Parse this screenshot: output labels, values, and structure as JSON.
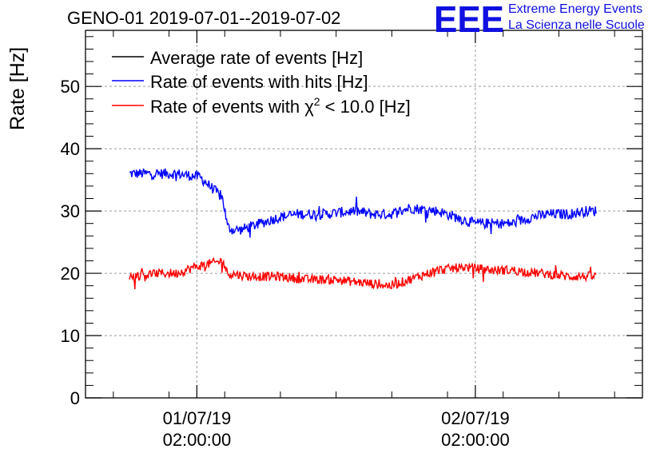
{
  "chart_data": {
    "type": "line",
    "title": "GENO-01 2019-07-01--2019-07-02",
    "xlabel": "",
    "ylabel": "Rate [Hz]",
    "ylim": [
      0,
      59
    ],
    "y_ticks": [
      0,
      10,
      20,
      30,
      40,
      50
    ],
    "x_ticks": [
      {
        "line1": "01/07/19",
        "line2": "02:00:00",
        "at": 0.2
      },
      {
        "line1": "02/07/19",
        "line2": "02:00:00",
        "at": 0.7
      }
    ],
    "grid": true,
    "legend_placement": "top-left",
    "series": [
      {
        "name": "Average rate of events [Hz]",
        "color": "#000000",
        "values": []
      },
      {
        "name": "Rate of events with hits [Hz]",
        "color": "#0000ff",
        "x": [
          0.0,
          0.08,
          0.1,
          0.15,
          0.18,
          0.2,
          0.21,
          0.22,
          0.24,
          0.28,
          0.32,
          0.36,
          0.42,
          0.48,
          0.52,
          0.56,
          0.6,
          0.66,
          0.7,
          0.74,
          0.78,
          0.82,
          0.86,
          0.9,
          0.94,
          0.98,
          1.0
        ],
        "values": [
          36,
          36,
          36,
          35.5,
          33.5,
          32,
          27.5,
          27,
          27,
          28,
          29,
          29.5,
          29.5,
          30,
          29.5,
          29.5,
          30.5,
          30,
          29,
          28,
          28,
          28,
          29,
          29.5,
          29.5,
          30,
          30
        ]
      },
      {
        "name": "Rate of events with χ² < 10.0 [Hz]",
        "color": "#ff0000",
        "x": [
          0.0,
          0.06,
          0.1,
          0.14,
          0.17,
          0.2,
          0.21,
          0.26,
          0.32,
          0.38,
          0.44,
          0.5,
          0.56,
          0.6,
          0.66,
          0.72,
          0.78,
          0.82,
          0.88,
          0.94,
          1.0
        ],
        "values": [
          19.5,
          20,
          20,
          21,
          21.5,
          22,
          20,
          19.5,
          19.5,
          19,
          19,
          18.5,
          18,
          19,
          20.5,
          21,
          20.5,
          20.5,
          20,
          19.5,
          19.5
        ]
      }
    ]
  },
  "logo": {
    "mark": "EEE",
    "line1": "Extreme Energy Events",
    "line2": "La Scienza nelle Scuole"
  },
  "colors": {
    "grid": "#9a9a9a",
    "logo": "#1010e0"
  }
}
